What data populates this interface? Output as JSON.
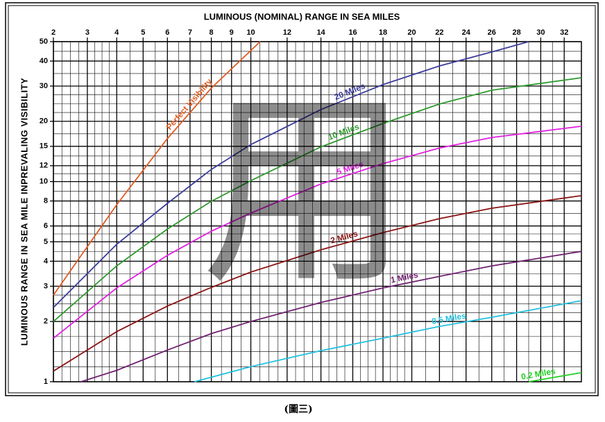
{
  "chart_data": {
    "type": "line",
    "title": "LUMINOUS (NOMINAL) RANGE IN SEA MILES",
    "y_label": "LUMINOUS RANGE IN SEA MILE INPREVALING VISIBILITY",
    "caption": "(圖三)",
    "watermark": "用",
    "xlim": [
      2,
      33.5
    ],
    "xticks": [
      2,
      3,
      4,
      5,
      6,
      7,
      8,
      9,
      10,
      12,
      14,
      16,
      18,
      20,
      22,
      24,
      26,
      28,
      30,
      32
    ],
    "ylim": [
      1,
      50
    ],
    "yticks": [
      1,
      2,
      3,
      4,
      5,
      6,
      8,
      10,
      12,
      15,
      20,
      30,
      40,
      50
    ],
    "ylog": true,
    "grid": true,
    "series": [
      {
        "name": "Perfect Visibility",
        "color": "#e05a20",
        "x": [
          2,
          4,
          6,
          8,
          10.5
        ],
        "values": [
          2.71,
          7.66,
          16.4,
          29.3,
          50
        ]
      },
      {
        "name": "20 Miles",
        "color": "#3c3c9c",
        "x": [
          2,
          4,
          6,
          8,
          10,
          14,
          18,
          22,
          26,
          29
        ],
        "values": [
          2.35,
          4.86,
          7.78,
          11.5,
          15.3,
          22.9,
          30.5,
          37.8,
          44.4,
          50
        ]
      },
      {
        "name": "10 Miles",
        "color": "#2e9a2e",
        "x": [
          2,
          4,
          6,
          8,
          10,
          14,
          18,
          22,
          26,
          33.5
        ],
        "values": [
          2.0,
          3.79,
          5.79,
          7.97,
          10.1,
          14.9,
          19.5,
          24.4,
          28.6,
          33.0
        ]
      },
      {
        "name": "5 Miles",
        "color": "#e020e0",
        "x": [
          2,
          4,
          6,
          8,
          10,
          14,
          18,
          22,
          26,
          33.5
        ],
        "values": [
          1.65,
          2.94,
          4.28,
          5.65,
          6.96,
          9.73,
          12.3,
          14.7,
          16.6,
          18.9
        ]
      },
      {
        "name": "2 Miles",
        "color": "#8b1414",
        "x": [
          2,
          4,
          6,
          8,
          10,
          14,
          18,
          22,
          26,
          33.5
        ],
        "values": [
          1.13,
          1.78,
          2.39,
          2.96,
          3.53,
          4.56,
          5.56,
          6.53,
          7.36,
          8.5
        ]
      },
      {
        "name": "1 Miles",
        "color": "#702070",
        "x": [
          2.8,
          4,
          6,
          8,
          10,
          14,
          18,
          22,
          26,
          33.5
        ],
        "values": [
          1,
          1.14,
          1.44,
          1.74,
          2.0,
          2.49,
          2.94,
          3.36,
          3.79,
          4.48
        ]
      },
      {
        "name": "0.5 Miles",
        "color": "#20c0e0",
        "x": [
          7.2,
          10,
          14,
          18,
          22,
          26,
          33.5
        ],
        "values": [
          1,
          1.19,
          1.43,
          1.65,
          1.89,
          2.1,
          2.54
        ]
      },
      {
        "name": "0.2 Miles",
        "color": "#20d020",
        "x": [
          29,
          33.5
        ],
        "values": [
          1,
          1.11
        ]
      }
    ]
  }
}
